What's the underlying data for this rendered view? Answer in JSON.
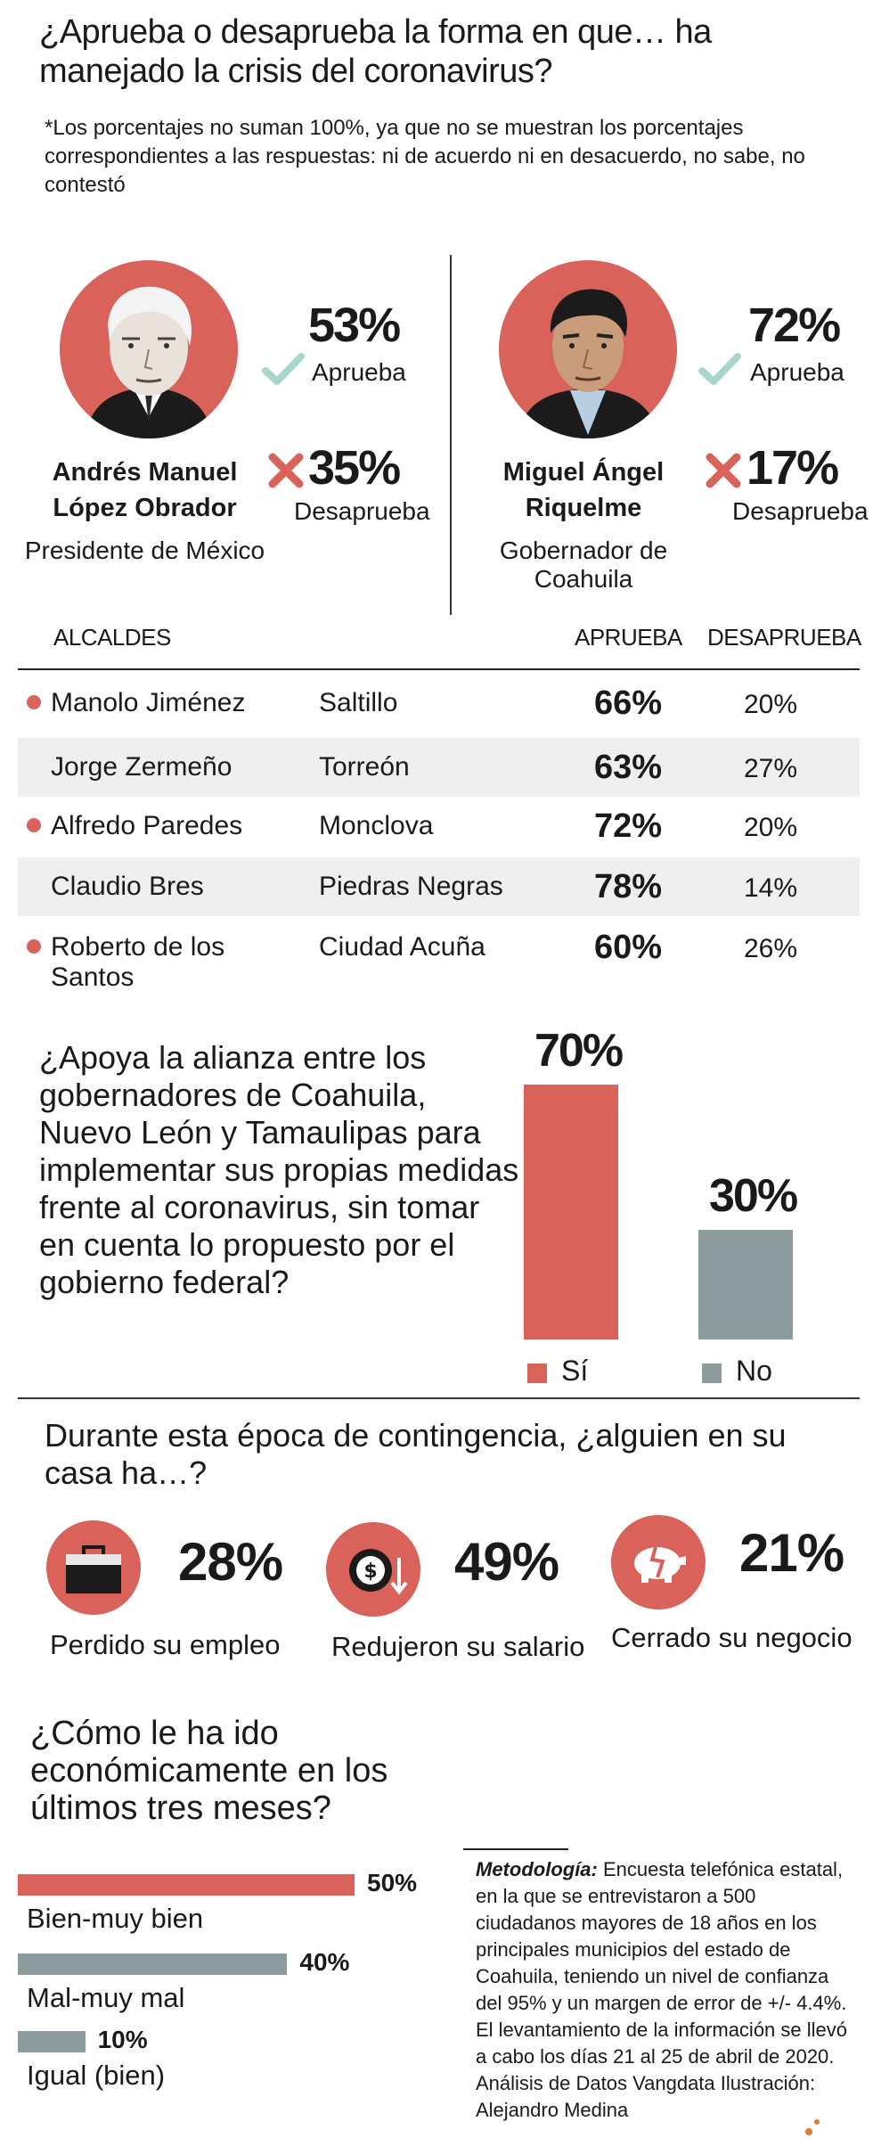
{
  "title": "¿Aprueba o desaprueba la forma en que… ha manejado la crisis del coronavirus?",
  "note": "*Los porcentajes no suman 100%, ya que no se muestran los porcentajes correspondientes a las respuestas: ni de acuerdo ni en desacuerdo, no sabe, no contestó",
  "leaders": [
    {
      "name_line1": "Andrés Manuel",
      "name_line2": "López Obrador",
      "role": "Presidente de México",
      "approve": "53%",
      "approve_label": "Aprueba",
      "disapprove": "35%",
      "disapprove_label": "Desaprueba"
    },
    {
      "name_line1": "Miguel Ángel",
      "name_line2": "Riquelme",
      "role": "Gobernador de Coahuila",
      "approve": "72%",
      "approve_label": "Aprueba",
      "disapprove": "17%",
      "disapprove_label": "Desaprueba"
    }
  ],
  "mayors_table": {
    "headers": {
      "alcaldes": "ALCALDES",
      "aprueba": "APRUEBA",
      "desaprueba": "DESAPRUEBA"
    },
    "rows": [
      {
        "name": "Manolo Jiménez",
        "city": "Saltillo",
        "approve": "66%",
        "disapprove": "20%"
      },
      {
        "name": "Jorge Zermeño",
        "city": "Torreón",
        "approve": "63%",
        "disapprove": "27%"
      },
      {
        "name": "Alfredo Paredes",
        "city": "Monclova",
        "approve": "72%",
        "disapprove": "20%"
      },
      {
        "name": "Claudio Bres",
        "city": "Piedras Negras",
        "approve": "78%",
        "disapprove": "14%"
      },
      {
        "name": "Roberto de los Santos",
        "city": "Ciudad Acuña",
        "approve": "60%",
        "disapprove": "26%"
      }
    ]
  },
  "q_alianza": "¿Apoya la alianza entre los gobernadores de Coahuila, Nuevo León y Tamaulipas para implementar sus propias medidas frente al coronavirus, sin tomar en cuenta lo propuesto por el gobierno federal?",
  "q_contingencia": "Durante esta época de contingencia, ¿alguien en su casa ha…?",
  "contingencia": [
    {
      "pct": "28%",
      "label": "Perdido su empleo",
      "icon": "briefcase-icon"
    },
    {
      "pct": "49%",
      "label": "Redujeron su salario",
      "icon": "coin-down-icon"
    },
    {
      "pct": "21%",
      "label": "Cerrado su negocio",
      "icon": "broken-piggy-bank-icon"
    }
  ],
  "q_economia": "¿Cómo le ha ido económicamente en los últimos tres meses?",
  "metodologia_title": "Metodología:",
  "metodologia_text": "Encuesta telefónica estatal, en la que se entrevistaron a 500 ciudadanos mayores de 18 años en los principales municipios del estado de Coahuila, teniendo un nivel de confianza del 95% y un margen de error de +/- 4.4%. El levantamiento de la información se llevó a cabo los días 21 al 25 de abril de 2020. Análisis de Datos Vangdata Ilustración: Alejandro Medina",
  "colors": {
    "red": "#d9625b",
    "gray": "#8c9c9c",
    "check": "#a9d6cc",
    "cross": "#d9625b"
  },
  "chart_data": [
    {
      "type": "bar",
      "categories": [
        "Sí",
        "No"
      ],
      "values": [
        70,
        30
      ],
      "value_labels": [
        "70%",
        "30%"
      ],
      "colors": [
        "#d9625b",
        "#8c9c9c"
      ],
      "ylim": [
        0,
        70
      ],
      "legend": "bottom"
    },
    {
      "type": "bar",
      "orientation": "horizontal",
      "categories": [
        "Bien-muy bien",
        "Mal-muy mal",
        "Igual (bien)"
      ],
      "values": [
        50,
        40,
        10
      ],
      "value_labels": [
        "50%",
        "40%",
        "10%"
      ],
      "colors": [
        "#d9625b",
        "#8c9c9c",
        "#8c9c9c"
      ],
      "xlim": [
        0,
        50
      ]
    }
  ]
}
